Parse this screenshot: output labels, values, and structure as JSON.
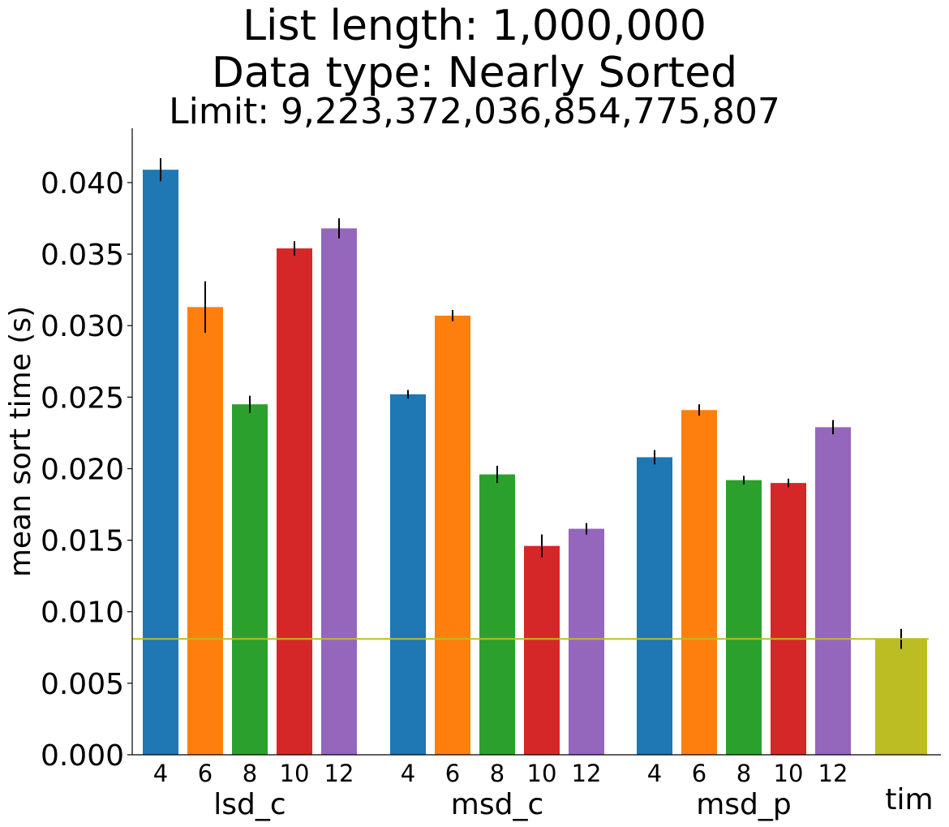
{
  "chart_data": {
    "type": "bar",
    "title": "List length: 1,000,000",
    "subtitle": "Data type: Nearly Sorted",
    "subtitle2": "Limit: 9,223,372,036,854,775,807",
    "xlabel": "",
    "ylabel": "mean sort time (s)",
    "ylim": [
      0,
      0.0438
    ],
    "yticks": [
      "0.000",
      "0.005",
      "0.010",
      "0.015",
      "0.020",
      "0.025",
      "0.030",
      "0.035",
      "0.040"
    ],
    "grid": false,
    "legend": "none",
    "reference_line": {
      "value": 0.0081,
      "color": "#bcbd22"
    },
    "groups": [
      {
        "label": "lsd_c",
        "bars": [
          {
            "label": "4",
            "value": 0.0409,
            "error": 0.0008,
            "color": "#1f77b4"
          },
          {
            "label": "6",
            "value": 0.0313,
            "error": 0.0018,
            "color": "#ff7f0e"
          },
          {
            "label": "8",
            "value": 0.0245,
            "error": 0.0006,
            "color": "#2ca02c"
          },
          {
            "label": "10",
            "value": 0.0354,
            "error": 0.0005,
            "color": "#d62728"
          },
          {
            "label": "12",
            "value": 0.0368,
            "error": 0.0007,
            "color": "#9467bd"
          }
        ]
      },
      {
        "label": "msd_c",
        "bars": [
          {
            "label": "4",
            "value": 0.0252,
            "error": 0.0003,
            "color": "#1f77b4"
          },
          {
            "label": "6",
            "value": 0.0307,
            "error": 0.0004,
            "color": "#ff7f0e"
          },
          {
            "label": "8",
            "value": 0.0196,
            "error": 0.0006,
            "color": "#2ca02c"
          },
          {
            "label": "10",
            "value": 0.0146,
            "error": 0.0008,
            "color": "#d62728"
          },
          {
            "label": "12",
            "value": 0.0158,
            "error": 0.0004,
            "color": "#9467bd"
          }
        ]
      },
      {
        "label": "msd_p",
        "bars": [
          {
            "label": "4",
            "value": 0.0208,
            "error": 0.0005,
            "color": "#1f77b4"
          },
          {
            "label": "6",
            "value": 0.0241,
            "error": 0.0004,
            "color": "#ff7f0e"
          },
          {
            "label": "8",
            "value": 0.0192,
            "error": 0.0003,
            "color": "#2ca02c"
          },
          {
            "label": "10",
            "value": 0.019,
            "error": 0.0003,
            "color": "#d62728"
          },
          {
            "label": "12",
            "value": 0.0229,
            "error": 0.0005,
            "color": "#9467bd"
          }
        ]
      },
      {
        "label": "tim",
        "bars": [
          {
            "label": "",
            "value": 0.0081,
            "error": 0.0007,
            "color": "#bcbd22"
          }
        ]
      }
    ]
  }
}
